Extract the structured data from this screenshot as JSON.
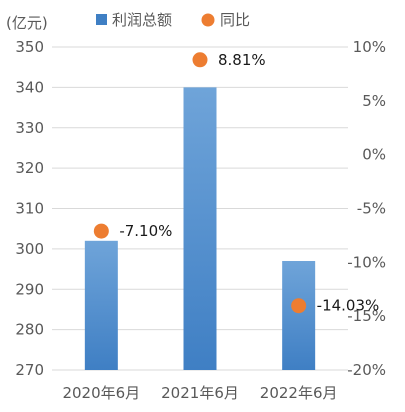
{
  "chart_data": {
    "type": "bar",
    "unit_label": "(亿元)",
    "categories": [
      "2020年6月",
      "2021年6月",
      "2022年6月"
    ],
    "series": [
      {
        "name": "利润总额",
        "type": "bar",
        "axis": "left",
        "values": [
          302,
          340,
          297
        ]
      },
      {
        "name": "同比",
        "type": "scatter",
        "axis": "right",
        "values": [
          -7.1,
          8.81,
          -14.03
        ]
      }
    ],
    "data_labels": [
      "-7.10%",
      "8.81%",
      "-14.03%"
    ],
    "y_left": {
      "ylim": [
        270,
        350
      ],
      "ticks": [
        "270",
        "280",
        "290",
        "300",
        "310",
        "320",
        "330",
        "340",
        "350"
      ]
    },
    "y_right": {
      "ylim": [
        -20,
        10
      ],
      "ticks": [
        "-20%",
        "-15%",
        "-10%",
        "-5%",
        "0%",
        "5%",
        "10%"
      ]
    },
    "grid": true,
    "legend_position": "top",
    "colors": {
      "bar_top": "#6fa4d9",
      "bar_bottom": "#3f7fc4",
      "marker": "#ed7d31",
      "grid": "#d9d9d9",
      "text": "#595959"
    }
  }
}
